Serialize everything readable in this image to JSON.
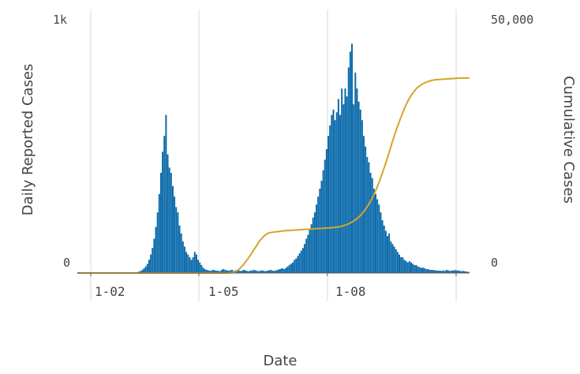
{
  "chart_data": {
    "type": "bar",
    "xlabel": "Date",
    "ylabel_left": "Daily Reported Cases",
    "ylabel_right": "Cumulative Cases",
    "y_left_ticks": [
      "0",
      "1k"
    ],
    "y_right_ticks": [
      "0",
      "50,000"
    ],
    "x_ticks": [
      "1-02",
      "1-05",
      "1-08"
    ],
    "ylim_left": [
      0,
      1000
    ],
    "ylim_right": [
      0,
      50000
    ],
    "grid": "vertical",
    "colors": {
      "bars": "#0a6aaa",
      "line": "#d4a52a",
      "grid": "#d9d9d9",
      "axis": "#555555"
    },
    "series": [
      {
        "type": "bar",
        "axis": "left",
        "values": [
          0,
          0,
          0,
          0,
          0,
          0,
          0,
          0,
          0,
          0,
          0,
          0,
          0,
          0,
          0,
          0,
          0,
          0,
          0,
          0,
          0,
          0,
          0,
          0,
          0,
          0,
          0,
          0,
          0,
          0,
          0,
          0,
          1,
          1,
          2,
          3,
          5,
          8,
          12,
          18,
          25,
          35,
          50,
          70,
          95,
          130,
          175,
          230,
          300,
          380,
          460,
          520,
          600,
          450,
          400,
          380,
          330,
          290,
          250,
          230,
          180,
          150,
          120,
          100,
          80,
          70,
          60,
          50,
          60,
          80,
          70,
          50,
          40,
          30,
          20,
          15,
          12,
          10,
          8,
          10,
          12,
          10,
          9,
          8,
          7,
          12,
          15,
          12,
          10,
          9,
          10,
          12,
          8,
          10,
          12,
          10,
          8,
          9,
          12,
          10,
          8,
          7,
          9,
          10,
          12,
          10,
          8,
          7,
          9,
          10,
          8,
          7,
          9,
          10,
          12,
          9,
          8,
          10,
          12,
          14,
          16,
          18,
          15,
          20,
          25,
          30,
          35,
          40,
          50,
          55,
          65,
          75,
          85,
          95,
          110,
          130,
          145,
          165,
          185,
          210,
          230,
          260,
          290,
          320,
          350,
          390,
          430,
          470,
          520,
          560,
          600,
          620,
          580,
          610,
          660,
          600,
          700,
          640,
          700,
          670,
          780,
          840,
          870,
          640,
          760,
          700,
          650,
          620,
          580,
          520,
          480,
          440,
          420,
          380,
          360,
          320,
          300,
          280,
          260,
          230,
          200,
          180,
          160,
          140,
          150,
          120,
          110,
          100,
          90,
          80,
          70,
          60,
          60,
          50,
          45,
          40,
          45,
          40,
          35,
          30,
          30,
          25,
          22,
          20,
          20,
          18,
          15,
          15,
          12,
          12,
          12,
          10,
          10,
          9,
          9,
          8,
          10,
          8,
          12,
          10,
          8,
          9,
          10,
          11,
          10,
          9,
          8,
          7,
          8,
          6,
          5,
          4
        ]
      },
      {
        "type": "line",
        "axis": "right",
        "values": [
          0,
          0,
          0,
          0,
          0,
          0,
          0,
          0,
          0,
          0,
          0,
          0,
          0,
          0,
          0,
          0,
          0,
          0,
          0,
          0,
          0,
          0,
          0,
          0,
          0,
          0,
          0,
          0,
          0,
          0,
          0,
          0,
          0,
          0,
          0,
          0,
          0,
          0,
          50,
          200,
          700,
          1500,
          2500,
          3600,
          4800,
          6000,
          6900,
          7500,
          7700,
          7800,
          7900,
          8000,
          8050,
          8100,
          8150,
          8200,
          8250,
          8300,
          8350,
          8400,
          8450,
          8500,
          8550,
          8600,
          8700,
          8800,
          9000,
          9300,
          9700,
          10200,
          10900,
          11800,
          12900,
          14300,
          16000,
          18000,
          20200,
          22600,
          25100,
          27400,
          29500,
          31400,
          33000,
          34200,
          35100,
          35700,
          36100,
          36400,
          36600,
          36700,
          36750,
          36800,
          36850,
          36900,
          36950,
          37000,
          37000,
          37000
        ]
      }
    ]
  }
}
